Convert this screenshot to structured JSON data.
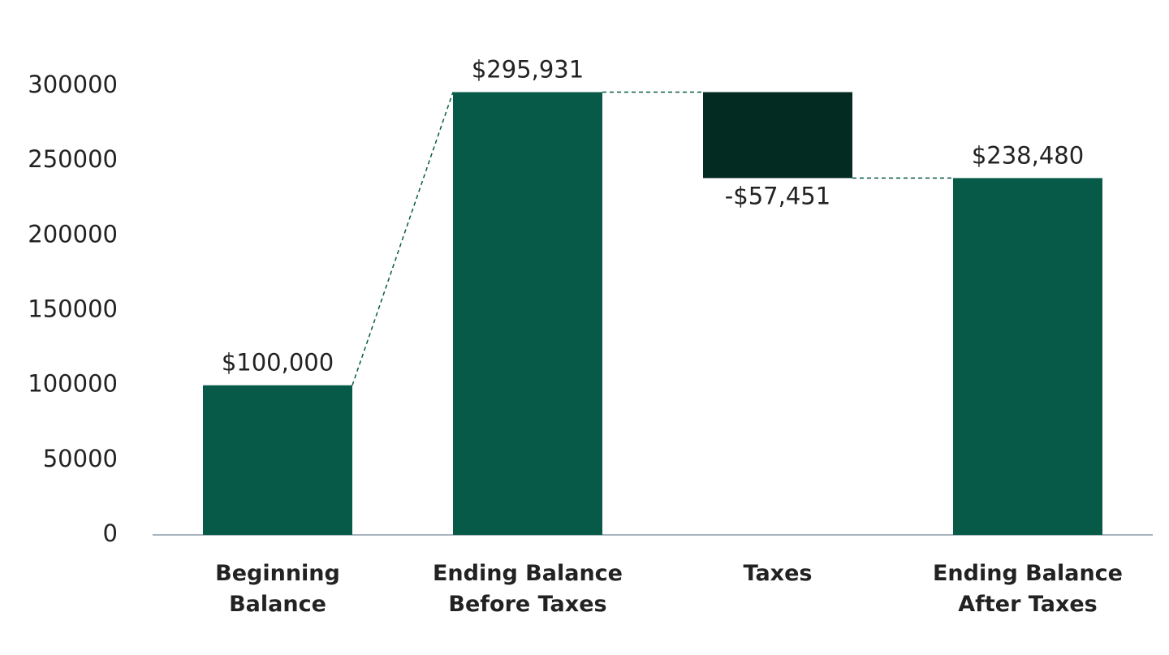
{
  "chart_data": {
    "type": "waterfall",
    "categories": [
      "Beginning Balance",
      "Ending Balance Before Taxes",
      "Taxes",
      "Ending Balance After Taxes"
    ],
    "values": [
      100000,
      295931,
      -57451,
      238480
    ],
    "value_labels": [
      "$100,000",
      "$295,931",
      "-$57,451",
      "$238,480"
    ],
    "kinds": [
      "total",
      "total",
      "delta",
      "total"
    ],
    "colors": [
      "#065a47",
      "#065a47",
      "#032b21",
      "#065a47"
    ],
    "ylim": [
      0,
      300000
    ],
    "yticks": [
      0,
      50000,
      100000,
      150000,
      200000,
      250000,
      300000
    ]
  }
}
